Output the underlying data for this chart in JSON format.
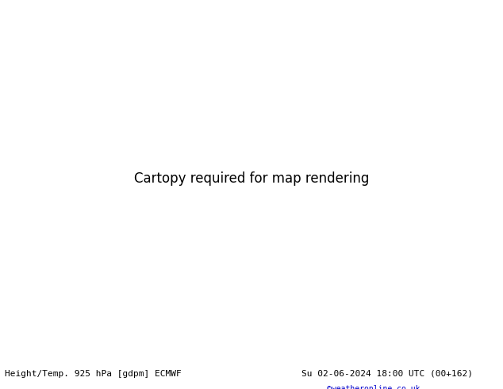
{
  "title_left": "Height/Temp. 925 hPa [gdpm] ECMWF",
  "title_right": "Su 02-06-2024 18:00 UTC (00+162)",
  "title_right2": "©weatheronline.co.uk",
  "bg_color": "#c8d8e8",
  "land_color": "#c8e8a0",
  "land_edge": "#888888",
  "fig_width": 6.34,
  "fig_height": 4.9,
  "dpi": 100,
  "map_extent": [
    90,
    200,
    -55,
    10
  ],
  "footer_text_color": "#000000",
  "footer_url_color": "#0000cc",
  "contour_black_color": "#000000",
  "contour_orange_color": "#e07800",
  "contour_red_color": "#cc0000",
  "contour_green_color": "#88cc00",
  "contour_cyan_color": "#00cccc",
  "label_fontsize": 7,
  "footer_fontsize": 8
}
